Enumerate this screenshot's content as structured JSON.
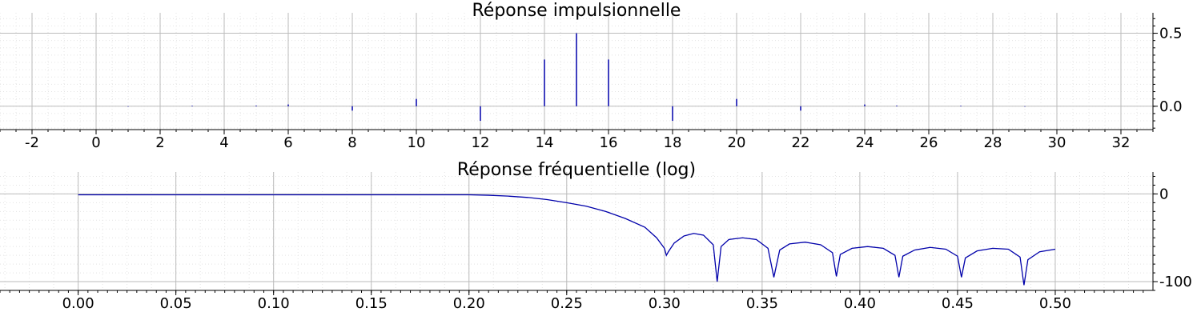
{
  "colors": {
    "series": "#0000aa",
    "grid_major": "#bbbbbb",
    "grid_minor": "#e4e4e4",
    "axis": "#000000"
  },
  "chart_data": [
    {
      "type": "bar",
      "title": "Réponse impulsionnelle",
      "xlabel": "",
      "ylabel": "",
      "grid": true,
      "x_range": [
        -3,
        33
      ],
      "y_range": [
        -0.16,
        0.64
      ],
      "x_ticks": [
        -2,
        0,
        2,
        4,
        6,
        8,
        10,
        12,
        14,
        16,
        18,
        20,
        22,
        24,
        26,
        28,
        30,
        32
      ],
      "x_tick_labels": [
        "-2",
        "0",
        "2",
        "4",
        "6",
        "8",
        "10",
        "12",
        "14",
        "16",
        "18",
        "20",
        "22",
        "24",
        "26",
        "28",
        "30",
        "32"
      ],
      "y_ticks": [
        0.0,
        0.5
      ],
      "y_tick_labels": [
        "0.0",
        "0.5"
      ],
      "x": [
        0,
        1,
        2,
        3,
        4,
        5,
        6,
        7,
        8,
        9,
        10,
        11,
        12,
        13,
        14,
        15,
        16,
        17,
        18,
        19,
        20,
        21,
        22,
        23,
        24,
        25,
        26,
        27,
        28,
        29,
        30
      ],
      "values": [
        0.0,
        -0.003,
        0.0,
        0.004,
        0.0,
        0.005,
        0.012,
        0.0,
        -0.03,
        0.0,
        0.05,
        0.0,
        -0.1,
        0.0,
        0.32,
        0.5,
        0.32,
        0.0,
        -0.1,
        0.0,
        0.05,
        0.0,
        -0.03,
        0.0,
        0.012,
        0.005,
        0.0,
        0.004,
        0.0,
        -0.003,
        0.0
      ]
    },
    {
      "type": "line",
      "title": "Réponse fréquentielle (log)",
      "xlabel": "",
      "ylabel": "",
      "grid": true,
      "x_range": [
        -0.04,
        0.55
      ],
      "y_range": [
        -110,
        25
      ],
      "x_ticks": [
        0.0,
        0.05,
        0.1,
        0.15,
        0.2,
        0.25,
        0.3,
        0.35,
        0.4,
        0.45,
        0.5
      ],
      "x_tick_labels": [
        "0.00",
        "0.05",
        "0.10",
        "0.15",
        "0.20",
        "0.25",
        "0.30",
        "0.35",
        "0.40",
        "0.45",
        "0.50"
      ],
      "y_ticks": [
        0,
        -100
      ],
      "y_tick_labels": [
        "0",
        "-100"
      ],
      "series": [
        {
          "x": [
            0.0,
            0.1,
            0.2,
            0.21,
            0.22,
            0.23,
            0.24,
            0.25,
            0.26,
            0.27,
            0.28,
            0.29,
            0.296,
            0.3,
            0.301,
            0.302,
            0.305,
            0.31,
            0.315,
            0.32,
            0.325,
            0.327,
            0.329,
            0.333,
            0.34,
            0.347,
            0.353,
            0.356,
            0.359,
            0.364,
            0.372,
            0.38,
            0.386,
            0.388,
            0.39,
            0.396,
            0.404,
            0.412,
            0.418,
            0.42,
            0.422,
            0.428,
            0.436,
            0.444,
            0.45,
            0.452,
            0.454,
            0.46,
            0.468,
            0.476,
            0.482,
            0.484,
            0.486,
            0.492,
            0.5
          ],
          "values": [
            -1,
            -1,
            -1,
            -1.5,
            -2.5,
            -4,
            -6.5,
            -10,
            -14,
            -20,
            -28,
            -38,
            -50,
            -62,
            -70,
            -66,
            -56,
            -48,
            -45,
            -47,
            -58,
            -100,
            -60,
            -52,
            -50,
            -52,
            -62,
            -95,
            -64,
            -57,
            -55,
            -58,
            -67,
            -94,
            -69,
            -62,
            -60,
            -62,
            -70,
            -95,
            -71,
            -64,
            -61,
            -63,
            -71,
            -95,
            -73,
            -65,
            -62,
            -63,
            -72,
            -104,
            -75,
            -66,
            -63
          ]
        }
      ]
    }
  ]
}
